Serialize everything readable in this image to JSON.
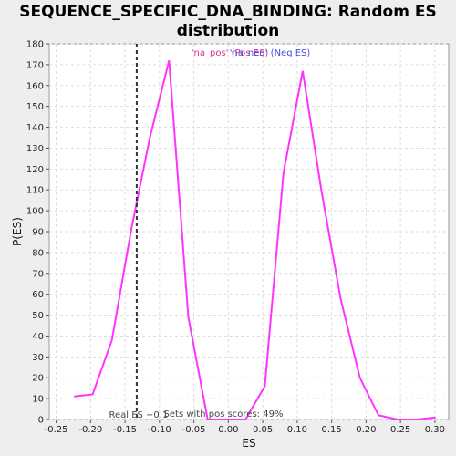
{
  "chart_data": {
    "type": "line",
    "title_line1": "SEQUENCE_SPECIFIC_DNA_BINDING: Random ES",
    "title_line2": "distribution",
    "xlabel": "ES",
    "ylabel": "P(ES)",
    "xlim": [
      -0.26,
      0.32
    ],
    "ylim": [
      0,
      180
    ],
    "xticks": [
      -0.25,
      -0.2,
      -0.15,
      -0.1,
      -0.05,
      0.0,
      0.05,
      0.1,
      0.15,
      0.2,
      0.25,
      0.3
    ],
    "xtick_labels": [
      "-0.25",
      "-0.20",
      "-0.15",
      "-0.10",
      "-0.05",
      "0.00",
      "0.05",
      "0.10",
      "0.15",
      "0.20",
      "0.25",
      "0.30"
    ],
    "yticks": [
      0,
      10,
      20,
      30,
      40,
      50,
      60,
      70,
      80,
      90,
      100,
      110,
      120,
      130,
      140,
      150,
      160,
      170,
      180
    ],
    "grid": true,
    "legend": {
      "placement": "top-center",
      "pos_label": "'na_pos' (Pos ES)",
      "neg_label": "'na_neg' (Neg ES)"
    },
    "series": [
      {
        "color": "#ff33ff",
        "x": [
          -0.224,
          -0.197,
          -0.169,
          -0.141,
          -0.114,
          -0.086,
          -0.058,
          -0.03,
          -0.003,
          0.025,
          0.053,
          0.08,
          0.108,
          0.135,
          0.163,
          0.191,
          0.218,
          0.246,
          0.274,
          0.301
        ],
        "y": [
          11,
          12,
          38,
          91,
          135,
          172,
          49,
          0,
          0,
          0,
          16,
          118,
          167,
          110,
          58,
          20,
          2,
          0,
          0,
          1
        ]
      }
    ],
    "real_es": {
      "x": -0.133,
      "color": "#333333",
      "label": "Real ES −0.1"
    },
    "annotation": "Sets with pos scores: 49%"
  }
}
